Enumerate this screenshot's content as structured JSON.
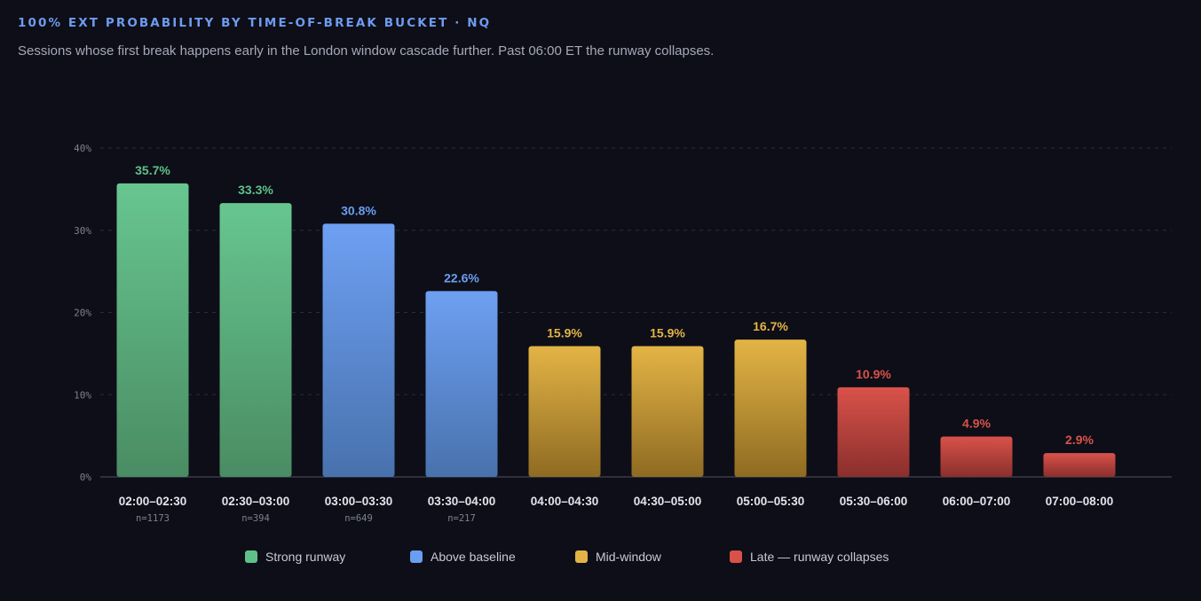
{
  "header": {
    "title": "100% EXT PROBABILITY BY TIME-OF-BREAK BUCKET · NQ",
    "subtitle": "Sessions whose first break happens early in the London window cascade further. Past 06:00 ET the runway collapses."
  },
  "colors": {
    "strong": "#5fc18a",
    "above": "#6b9ef0",
    "mid": "#e3b445",
    "late": "#d9524a",
    "background": "#0d0e17",
    "grid": "#2a2c3a",
    "axis": "#3a3c4a"
  },
  "chart_data": {
    "type": "bar",
    "title": "100% EXT PROBABILITY BY TIME-OF-BREAK BUCKET · NQ",
    "categories": [
      "02:00–02:30",
      "02:30–03:00",
      "03:00–03:30",
      "03:30–04:00",
      "04:00–04:30",
      "04:30–05:00",
      "05:00–05:30",
      "05:30–06:00",
      "06:00–07:00",
      "07:00–08:00"
    ],
    "values": [
      35.7,
      33.3,
      30.8,
      22.6,
      15.9,
      15.9,
      16.7,
      10.9,
      4.9,
      2.9
    ],
    "value_labels": [
      "35.7%",
      "33.3%",
      "30.8%",
      "22.6%",
      "15.9%",
      "15.9%",
      "16.7%",
      "10.9%",
      "4.9%",
      "2.9%"
    ],
    "sample_labels": [
      "n=1173",
      "n=394",
      "n=649",
      "n=217",
      "",
      "",
      "",
      "",
      "",
      ""
    ],
    "groups": [
      "strong",
      "strong",
      "above",
      "above",
      "mid",
      "mid",
      "mid",
      "late",
      "late",
      "late"
    ],
    "ylim": [
      0,
      40
    ],
    "yticks": [
      0,
      10,
      20,
      30,
      40
    ],
    "ytick_labels": [
      "0%",
      "10%",
      "20%",
      "30%",
      "40%"
    ],
    "grid": true,
    "legend_position": "bottom",
    "legend": [
      {
        "key": "strong",
        "label": "Strong runway"
      },
      {
        "key": "above",
        "label": "Above baseline"
      },
      {
        "key": "mid",
        "label": "Mid-window"
      },
      {
        "key": "late",
        "label": "Late — runway collapses"
      }
    ]
  }
}
